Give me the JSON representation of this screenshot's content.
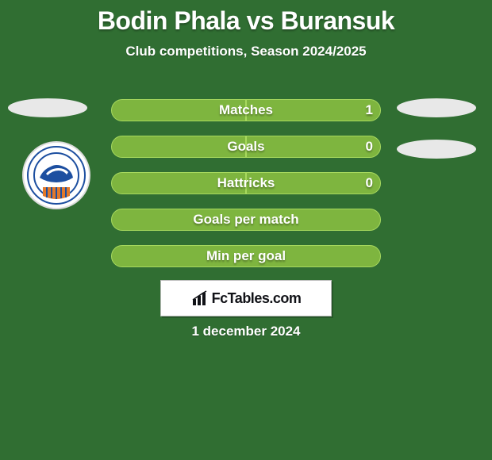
{
  "header": {
    "title": "Bodin Phala vs Buransuk",
    "subtitle": "Club competitions, Season 2024/2025"
  },
  "stats": {
    "rows": [
      {
        "label": "Matches",
        "left": null,
        "right": "1",
        "left_pct": 50,
        "right_pct": 50,
        "mode": "split"
      },
      {
        "label": "Goals",
        "left": null,
        "right": "0",
        "left_pct": 50,
        "right_pct": 50,
        "mode": "split"
      },
      {
        "label": "Hattricks",
        "left": null,
        "right": "0",
        "left_pct": 50,
        "right_pct": 50,
        "mode": "split"
      },
      {
        "label": "Goals per match",
        "left": null,
        "right": null,
        "left_pct": 100,
        "right_pct": 0,
        "mode": "full"
      },
      {
        "label": "Min per goal",
        "left": null,
        "right": null,
        "left_pct": 100,
        "right_pct": 0,
        "mode": "full"
      }
    ],
    "bar_color": "#7eb53f",
    "bar_border_color": "#a7d95e",
    "text_color": "#ffffff",
    "label_fontsize": 17
  },
  "footer": {
    "brand": "FcTables.com",
    "date": "1 december 2024"
  },
  "colors": {
    "background": "#306e32",
    "card_bg": "#ffffff",
    "card_border": "#bcbcbc"
  }
}
